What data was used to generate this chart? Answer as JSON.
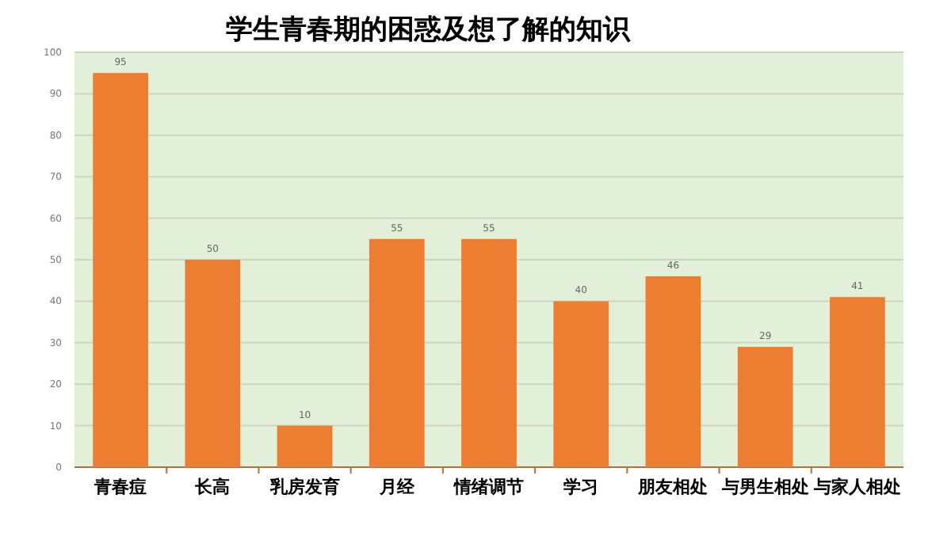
{
  "chart_data": {
    "type": "bar",
    "title": "学生青春期的困惑及想了解的知识",
    "categories": [
      "青春痘",
      "长高",
      "乳房发育",
      "月经",
      "情绪调节",
      "学习",
      "朋友相处",
      "与男生相处",
      "与家人相处"
    ],
    "values": [
      95,
      50,
      10,
      55,
      55,
      40,
      46,
      29,
      41
    ],
    "color": "#ed7d31",
    "ylim": [
      0,
      100
    ],
    "yticks": [
      0,
      10,
      20,
      30,
      40,
      50,
      60,
      70,
      80,
      90,
      100
    ],
    "grid": "y",
    "data_labels": true
  }
}
